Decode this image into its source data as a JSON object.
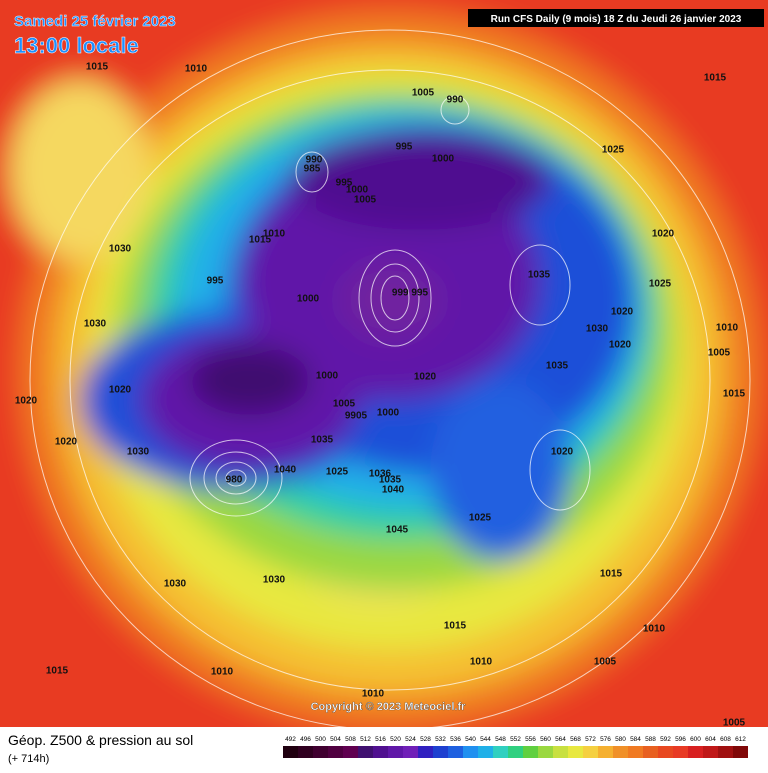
{
  "header": {
    "date": "Samedi 25 février 2023",
    "time": "13:00 locale",
    "run": "Run CFS Daily (9 mois) 18 Z du Jeudi 26 janvier 2023"
  },
  "pressure_labels": [
    "1015",
    "1010",
    "1005",
    "990",
    "995",
    "1000",
    "990",
    "985",
    "995",
    "1000",
    "1005",
    "1025",
    "1015",
    "1015",
    "1010",
    "1030",
    "995",
    "1000",
    "999 995",
    "1035",
    "1020",
    "1025",
    "1030",
    "1020",
    "1020",
    "1010",
    "1005",
    "1015",
    "1030",
    "1020",
    "1020",
    "1020",
    "1000",
    "1020",
    "1035",
    "1005",
    "9905",
    "1000",
    "1030",
    "1035",
    "980",
    "1040",
    "1025",
    "1036",
    "1035",
    "1040",
    "1020",
    "1045",
    "1025",
    "1030",
    "1030",
    "1015",
    "1015",
    "1010",
    "1010",
    "1005",
    "1015",
    "1010",
    "1010",
    "1005"
  ],
  "copyright": "Copyright © 2023 Meteociel.fr",
  "footer": {
    "title": "Géop. Z500 & pression au sol",
    "lead": "(+ 714h)"
  },
  "scale": [
    "492",
    "496",
    "500",
    "504",
    "508",
    "512",
    "516",
    "520",
    "524",
    "528",
    "532",
    "536",
    "540",
    "544",
    "548",
    "552",
    "556",
    "560",
    "564",
    "568",
    "572",
    "576",
    "580",
    "584",
    "588",
    "592",
    "596",
    "600",
    "604",
    "608",
    "612"
  ]
}
